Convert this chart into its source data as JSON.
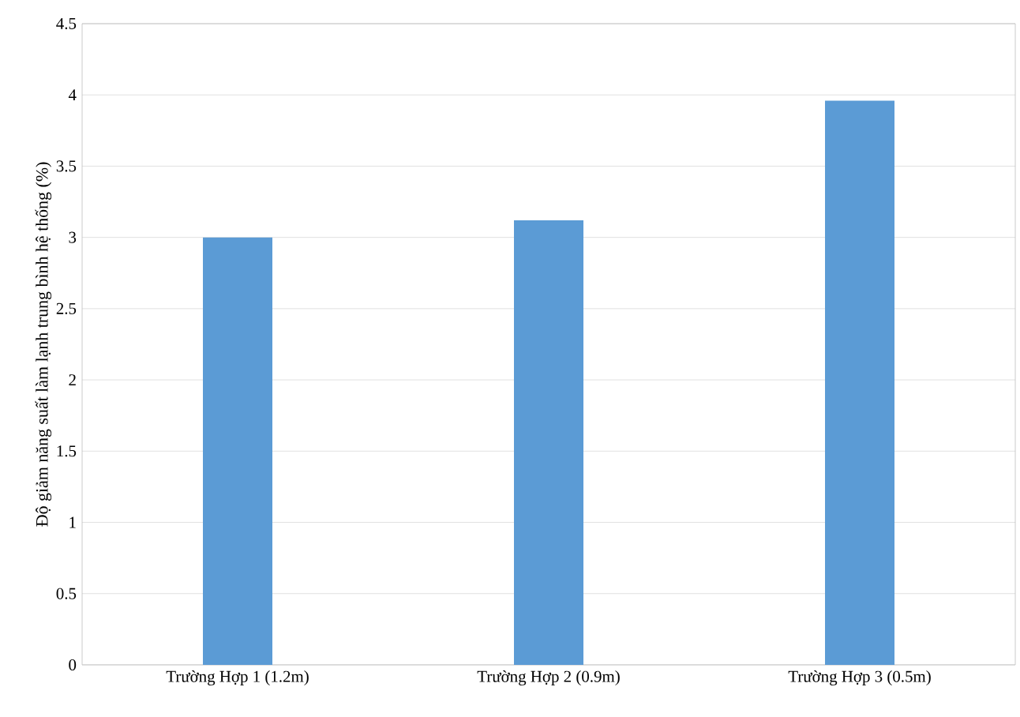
{
  "chart_data": {
    "type": "bar",
    "ylabel": "Độ giảm năng suất làm lạnh trung bình hệ thống (%)",
    "categories": [
      "Trường Hợp 1 (1.2m)",
      "Trường Hợp 2 (0.9m)",
      "Trường Hợp 3 (0.5m)"
    ],
    "values": [
      3.0,
      3.12,
      3.96
    ],
    "color": "#5b9bd5",
    "ylim": [
      0,
      4.5
    ],
    "yticks": [
      0,
      0.5,
      1,
      1.5,
      2,
      2.5,
      3,
      3.5,
      4,
      4.5
    ],
    "grid": "y"
  }
}
